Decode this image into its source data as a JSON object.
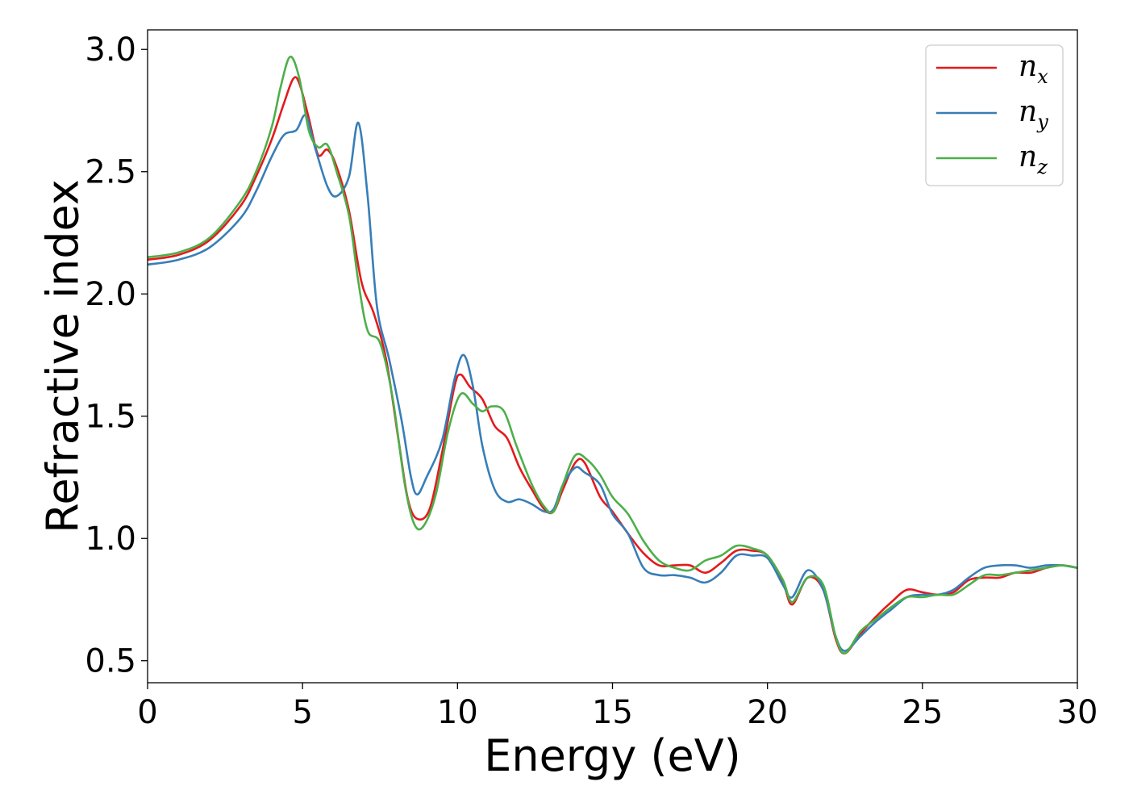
{
  "chart_data": {
    "type": "line",
    "xlabel": "Energy (eV)",
    "ylabel": "Refractive index",
    "xlim": [
      0,
      30
    ],
    "ylim": [
      0.41,
      3.08
    ],
    "x_ticks": [
      0,
      5,
      10,
      15,
      20,
      25,
      30
    ],
    "x_tick_labels": [
      "0",
      "5",
      "10",
      "15",
      "20",
      "25",
      "30"
    ],
    "y_ticks": [
      0.5,
      1.0,
      1.5,
      2.0,
      2.5,
      3.0
    ],
    "y_tick_labels": [
      "0.5",
      "1.0",
      "1.5",
      "2.0",
      "2.5",
      "3.0"
    ],
    "grid": false,
    "legend_position": "top-right",
    "series": [
      {
        "name": "n_x",
        "legend_base": "n",
        "legend_sub": "x",
        "color": "#e41a1c",
        "points": [
          [
            0,
            2.14
          ],
          [
            1,
            2.16
          ],
          [
            2,
            2.22
          ],
          [
            3,
            2.36
          ],
          [
            3.5,
            2.48
          ],
          [
            4,
            2.63
          ],
          [
            4.4,
            2.78
          ],
          [
            4.7,
            2.88
          ],
          [
            4.9,
            2.86
          ],
          [
            5.2,
            2.72
          ],
          [
            5.5,
            2.57
          ],
          [
            5.8,
            2.59
          ],
          [
            6.1,
            2.52
          ],
          [
            6.5,
            2.34
          ],
          [
            6.9,
            2.05
          ],
          [
            7.3,
            1.92
          ],
          [
            7.7,
            1.73
          ],
          [
            8.1,
            1.4
          ],
          [
            8.4,
            1.16
          ],
          [
            8.7,
            1.08
          ],
          [
            9.1,
            1.12
          ],
          [
            9.5,
            1.35
          ],
          [
            9.9,
            1.62
          ],
          [
            10.1,
            1.67
          ],
          [
            10.4,
            1.62
          ],
          [
            10.8,
            1.57
          ],
          [
            11.2,
            1.46
          ],
          [
            11.6,
            1.41
          ],
          [
            12,
            1.29
          ],
          [
            12.4,
            1.2
          ],
          [
            12.8,
            1.12
          ],
          [
            13.1,
            1.11
          ],
          [
            13.4,
            1.2
          ],
          [
            13.8,
            1.31
          ],
          [
            14.1,
            1.31
          ],
          [
            14.6,
            1.17
          ],
          [
            15,
            1.11
          ],
          [
            15.5,
            1.02
          ],
          [
            16,
            0.94
          ],
          [
            16.5,
            0.89
          ],
          [
            17,
            0.89
          ],
          [
            17.5,
            0.89
          ],
          [
            18,
            0.86
          ],
          [
            18.5,
            0.9
          ],
          [
            19,
            0.95
          ],
          [
            19.5,
            0.95
          ],
          [
            20,
            0.93
          ],
          [
            20.5,
            0.82
          ],
          [
            20.8,
            0.73
          ],
          [
            21.3,
            0.84
          ],
          [
            21.8,
            0.79
          ],
          [
            22.2,
            0.59
          ],
          [
            22.5,
            0.53
          ],
          [
            23,
            0.61
          ],
          [
            23.5,
            0.68
          ],
          [
            24,
            0.74
          ],
          [
            24.5,
            0.79
          ],
          [
            25,
            0.78
          ],
          [
            25.5,
            0.77
          ],
          [
            26,
            0.78
          ],
          [
            26.5,
            0.83
          ],
          [
            27,
            0.84
          ],
          [
            27.5,
            0.84
          ],
          [
            28,
            0.86
          ],
          [
            28.5,
            0.86
          ],
          [
            29,
            0.88
          ],
          [
            29.5,
            0.89
          ],
          [
            30,
            0.88
          ]
        ]
      },
      {
        "name": "n_y",
        "legend_base": "n",
        "legend_sub": "y",
        "color": "#377eb8",
        "points": [
          [
            0,
            2.12
          ],
          [
            1,
            2.14
          ],
          [
            2,
            2.19
          ],
          [
            3,
            2.31
          ],
          [
            3.5,
            2.42
          ],
          [
            4,
            2.56
          ],
          [
            4.4,
            2.65
          ],
          [
            4.8,
            2.67
          ],
          [
            5.1,
            2.73
          ],
          [
            5.4,
            2.6
          ],
          [
            5.8,
            2.44
          ],
          [
            6.1,
            2.4
          ],
          [
            6.5,
            2.48
          ],
          [
            6.8,
            2.7
          ],
          [
            7.1,
            2.4
          ],
          [
            7.4,
            1.95
          ],
          [
            7.8,
            1.73
          ],
          [
            8.2,
            1.48
          ],
          [
            8.5,
            1.25
          ],
          [
            8.7,
            1.18
          ],
          [
            9,
            1.25
          ],
          [
            9.5,
            1.4
          ],
          [
            9.9,
            1.65
          ],
          [
            10.2,
            1.75
          ],
          [
            10.5,
            1.62
          ],
          [
            10.8,
            1.38
          ],
          [
            11.2,
            1.2
          ],
          [
            11.6,
            1.15
          ],
          [
            12,
            1.16
          ],
          [
            12.4,
            1.14
          ],
          [
            12.8,
            1.11
          ],
          [
            13.1,
            1.12
          ],
          [
            13.4,
            1.22
          ],
          [
            13.8,
            1.29
          ],
          [
            14.1,
            1.27
          ],
          [
            14.6,
            1.22
          ],
          [
            15,
            1.1
          ],
          [
            15.5,
            1.02
          ],
          [
            16,
            0.88
          ],
          [
            16.5,
            0.85
          ],
          [
            17,
            0.85
          ],
          [
            17.5,
            0.84
          ],
          [
            18,
            0.82
          ],
          [
            18.5,
            0.86
          ],
          [
            19,
            0.93
          ],
          [
            19.5,
            0.93
          ],
          [
            20,
            0.92
          ],
          [
            20.5,
            0.81
          ],
          [
            20.8,
            0.76
          ],
          [
            21.3,
            0.87
          ],
          [
            21.8,
            0.79
          ],
          [
            22.2,
            0.6
          ],
          [
            22.5,
            0.54
          ],
          [
            23,
            0.6
          ],
          [
            23.5,
            0.66
          ],
          [
            24,
            0.71
          ],
          [
            24.5,
            0.76
          ],
          [
            25,
            0.77
          ],
          [
            25.5,
            0.77
          ],
          [
            26,
            0.79
          ],
          [
            26.5,
            0.84
          ],
          [
            27,
            0.88
          ],
          [
            27.5,
            0.89
          ],
          [
            28,
            0.89
          ],
          [
            28.5,
            0.88
          ],
          [
            29,
            0.89
          ],
          [
            29.5,
            0.89
          ],
          [
            30,
            0.88
          ]
        ]
      },
      {
        "name": "n_z",
        "legend_base": "n",
        "legend_sub": "z",
        "color": "#4daf4a",
        "points": [
          [
            0,
            2.15
          ],
          [
            1,
            2.17
          ],
          [
            2,
            2.23
          ],
          [
            3,
            2.38
          ],
          [
            3.5,
            2.5
          ],
          [
            4,
            2.68
          ],
          [
            4.3,
            2.85
          ],
          [
            4.6,
            2.97
          ],
          [
            4.9,
            2.88
          ],
          [
            5.2,
            2.67
          ],
          [
            5.5,
            2.6
          ],
          [
            5.8,
            2.61
          ],
          [
            6.1,
            2.5
          ],
          [
            6.5,
            2.32
          ],
          [
            6.8,
            2.05
          ],
          [
            7.1,
            1.85
          ],
          [
            7.5,
            1.8
          ],
          [
            7.9,
            1.58
          ],
          [
            8.3,
            1.22
          ],
          [
            8.6,
            1.06
          ],
          [
            8.9,
            1.05
          ],
          [
            9.3,
            1.18
          ],
          [
            9.7,
            1.44
          ],
          [
            10.1,
            1.59
          ],
          [
            10.5,
            1.55
          ],
          [
            10.8,
            1.52
          ],
          [
            11.1,
            1.54
          ],
          [
            11.5,
            1.52
          ],
          [
            11.9,
            1.38
          ],
          [
            12.4,
            1.22
          ],
          [
            12.8,
            1.13
          ],
          [
            13.1,
            1.11
          ],
          [
            13.4,
            1.22
          ],
          [
            13.8,
            1.34
          ],
          [
            14.2,
            1.32
          ],
          [
            14.6,
            1.26
          ],
          [
            15,
            1.17
          ],
          [
            15.5,
            1.1
          ],
          [
            16,
            0.99
          ],
          [
            16.5,
            0.91
          ],
          [
            17,
            0.88
          ],
          [
            17.5,
            0.87
          ],
          [
            18,
            0.91
          ],
          [
            18.5,
            0.93
          ],
          [
            19,
            0.97
          ],
          [
            19.5,
            0.96
          ],
          [
            20,
            0.93
          ],
          [
            20.5,
            0.83
          ],
          [
            20.8,
            0.74
          ],
          [
            21.3,
            0.84
          ],
          [
            21.8,
            0.81
          ],
          [
            22.2,
            0.6
          ],
          [
            22.5,
            0.53
          ],
          [
            23,
            0.62
          ],
          [
            23.5,
            0.67
          ],
          [
            24,
            0.72
          ],
          [
            24.5,
            0.76
          ],
          [
            25,
            0.76
          ],
          [
            25.5,
            0.77
          ],
          [
            26,
            0.77
          ],
          [
            26.5,
            0.81
          ],
          [
            27,
            0.85
          ],
          [
            27.5,
            0.85
          ],
          [
            28,
            0.86
          ],
          [
            28.5,
            0.87
          ],
          [
            29,
            0.88
          ],
          [
            29.5,
            0.89
          ],
          [
            30,
            0.88
          ]
        ]
      }
    ]
  }
}
